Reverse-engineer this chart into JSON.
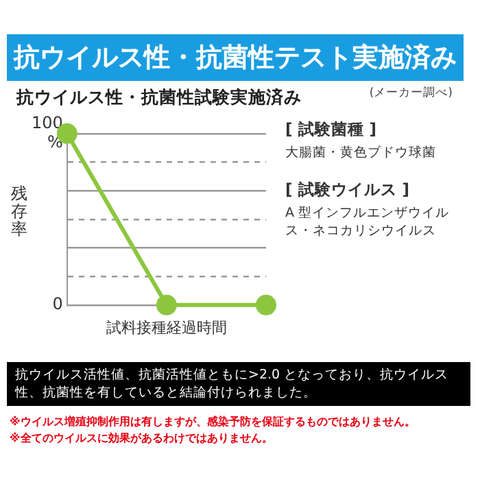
{
  "chart_data": {
    "type": "line",
    "title": "抗ウイルス性・抗菌性テスト実施済み",
    "subtitle": "抗ウイルス性・抗菌性試験実施済み",
    "xlabel": "試料接種経過時間",
    "ylabel": "残存率",
    "categories": [
      null,
      null,
      null
    ],
    "series": [
      {
        "color": "#8cc63f",
        "values": [
          100,
          0,
          0
        ]
      }
    ],
    "ylim": [
      0,
      100
    ],
    "yticks": [
      0,
      {
        "value": 16.7,
        "label": null
      },
      {
        "value": 33.3,
        "label": null
      },
      {
        "value": 50,
        "label": null
      },
      {
        "value": 66.7,
        "label": null
      },
      {
        "value": 83.3,
        "label": null
      },
      {
        "value": 100,
        "label": "100\n%"
      }
    ],
    "grid": "y",
    "legend": false,
    "marker": "circle",
    "line_style": "solid",
    "annotations": [
      "(メーカー調べ)",
      "[ 試験菌種 ]",
      "大腸菌・黄色ブドウ球菌",
      "[ 試験ウイルス ]",
      "A 型インフルエンザウイルス・ネコカリシウイルス",
      "抗ウイルス活性値、抗菌活性値ともに>2.0 となっており、抗ウイルス性、抗菌性を有していると結論付けられました。",
      "※ウイルス増殖抑制作用は有しますが、感染予防を保証するものではありません。",
      "※全てのウイルスに効果があるわけではありません。"
    ]
  }
}
